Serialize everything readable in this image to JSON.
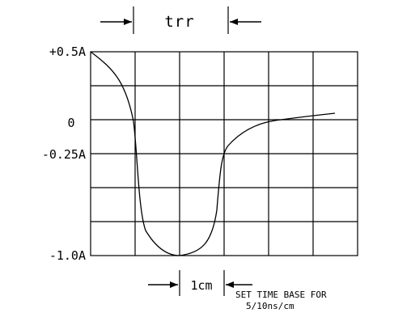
{
  "diagram": {
    "trr_label": "trr",
    "y_labels": {
      "top": "+0.5A",
      "zero": "0",
      "quarter": "-0.25A",
      "bottom": "-1.0A"
    },
    "scale_label": "1cm",
    "note_line1": "SET TIME BASE FOR",
    "note_line2": "5/10ns/cm",
    "grid": {
      "columns": 6,
      "rows": 6
    }
  }
}
